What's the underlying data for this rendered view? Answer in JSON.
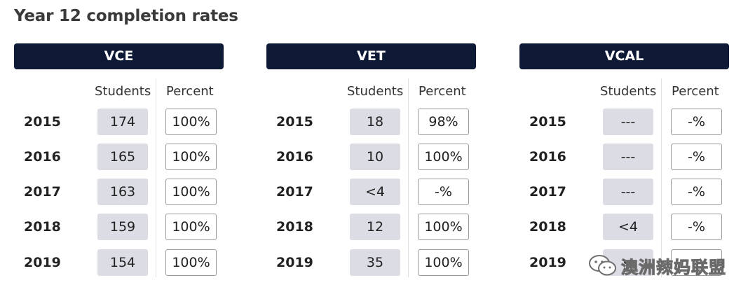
{
  "title": "Year 12 completion rates",
  "columns": {
    "students": "Students",
    "percent": "Percent"
  },
  "panels": [
    {
      "name": "VCE",
      "rows": [
        {
          "year": "2015",
          "students": "174",
          "percent": "100%"
        },
        {
          "year": "2016",
          "students": "165",
          "percent": "100%"
        },
        {
          "year": "2017",
          "students": "163",
          "percent": "100%"
        },
        {
          "year": "2018",
          "students": "159",
          "percent": "100%"
        },
        {
          "year": "2019",
          "students": "154",
          "percent": "100%"
        }
      ]
    },
    {
      "name": "VET",
      "rows": [
        {
          "year": "2015",
          "students": "18",
          "percent": "98%"
        },
        {
          "year": "2016",
          "students": "10",
          "percent": "100%"
        },
        {
          "year": "2017",
          "students": "<4",
          "percent": "-%"
        },
        {
          "year": "2018",
          "students": "12",
          "percent": "100%"
        },
        {
          "year": "2019",
          "students": "35",
          "percent": "100%"
        }
      ]
    },
    {
      "name": "VCAL",
      "rows": [
        {
          "year": "2015",
          "students": "---",
          "percent": "-%"
        },
        {
          "year": "2016",
          "students": "---",
          "percent": "-%"
        },
        {
          "year": "2017",
          "students": "---",
          "percent": "-%"
        },
        {
          "year": "2018",
          "students": "<4",
          "percent": "-%"
        },
        {
          "year": "2019",
          "students": "<",
          "percent": ""
        }
      ]
    }
  ],
  "watermark": {
    "text": "澳洲辣妈联盟",
    "icon": "wechat-icon"
  }
}
